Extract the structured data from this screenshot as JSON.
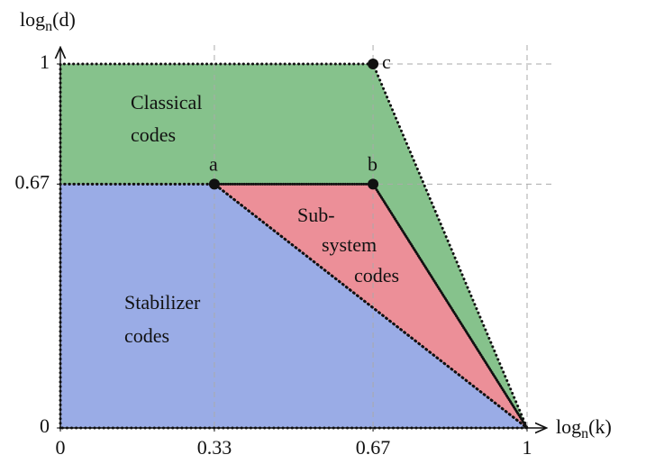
{
  "chart_data": {
    "type": "region",
    "xlim": [
      0,
      1
    ],
    "ylim": [
      0,
      1
    ],
    "xticks": [
      0,
      0.33,
      0.67,
      1
    ],
    "yticks": [
      0,
      0.67,
      1
    ],
    "grid": true,
    "x_label": [
      "log",
      "n",
      "(k)"
    ],
    "y_label": [
      "log",
      "n",
      "(d)"
    ],
    "regions": [
      {
        "name": [
          "Classical",
          "codes"
        ],
        "color": "#86c28c",
        "points": [
          [
            0,
            0.67
          ],
          [
            0,
            1
          ],
          [
            0.67,
            1
          ],
          [
            1,
            0
          ],
          [
            0.67,
            0.67
          ]
        ]
      },
      {
        "name": [
          "Stabilizer",
          "codes"
        ],
        "color": "#9aace6",
        "points": [
          [
            0,
            0
          ],
          [
            0,
            0.67
          ],
          [
            0.33,
            0.67
          ],
          [
            1,
            0
          ]
        ]
      },
      {
        "name": [
          "Sub-",
          "system",
          "codes"
        ],
        "color": "#ec8f98",
        "points": [
          [
            0.33,
            0.67
          ],
          [
            0.67,
            0.67
          ],
          [
            1,
            0
          ]
        ]
      }
    ],
    "points": [
      {
        "label": "a",
        "x": 0.33,
        "y": 0.67
      },
      {
        "label": "b",
        "x": 0.67,
        "y": 0.67
      },
      {
        "label": "c",
        "x": 0.67,
        "y": 1
      }
    ]
  }
}
